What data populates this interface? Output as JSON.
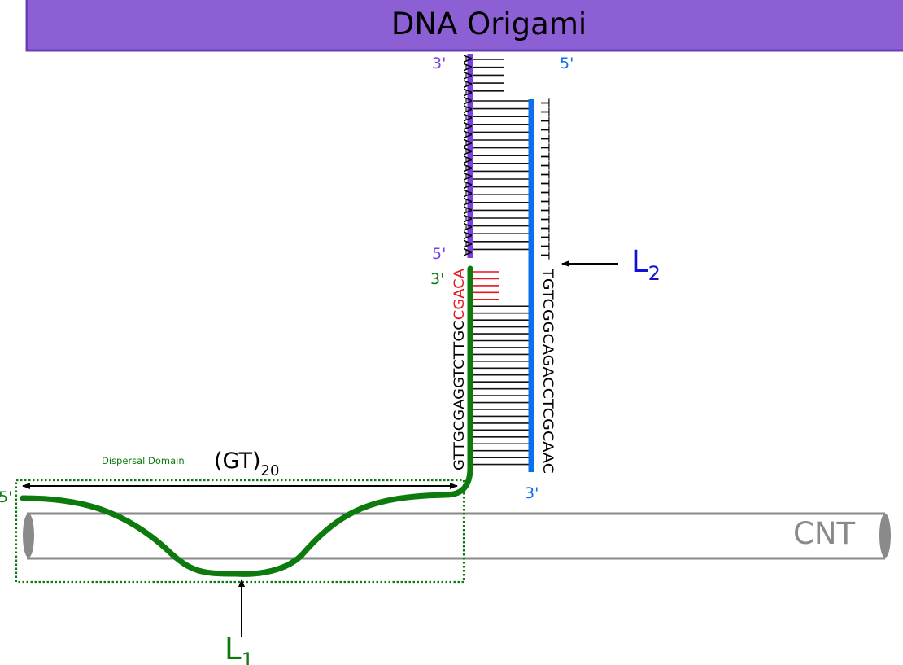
{
  "origami": {
    "label": "DNA Origami",
    "fill": "#8c5fd4",
    "stroke": "#6a3db8"
  },
  "strands": {
    "purple": {
      "color": "#7b3fe4",
      "end_top": "3'",
      "end_bottom": "5'",
      "sequence": "AAAAAAAAAAAAAAAAAAAAAAAA"
    },
    "blue": {
      "color": "#0b6ff0",
      "end_top": "5'",
      "end_bottom": "3'",
      "sequence_poly": "TTTTTTTTTTTTTTTTTT",
      "sequence_main": "TGTCGGCAGACCTCGCAAC"
    },
    "green": {
      "color": "#0d7a0d",
      "end_top": "3'",
      "end_left": "5'",
      "sequence_black": "GTTGCGAGGTCTTGC",
      "sequence_red": "CGACA",
      "red_color": "#e8141e"
    }
  },
  "labels": {
    "dispersal": "Dispersal Domain",
    "gt_main": "(GT)",
    "gt_sub": "20",
    "cnt": "CNT",
    "l1_main": "L",
    "l1_sub": "1",
    "l2_main": "L",
    "l2_sub": "2"
  },
  "colors": {
    "cnt": "#8a8a8a",
    "base_pair": "#111111",
    "label_l2": "#1010d8"
  }
}
